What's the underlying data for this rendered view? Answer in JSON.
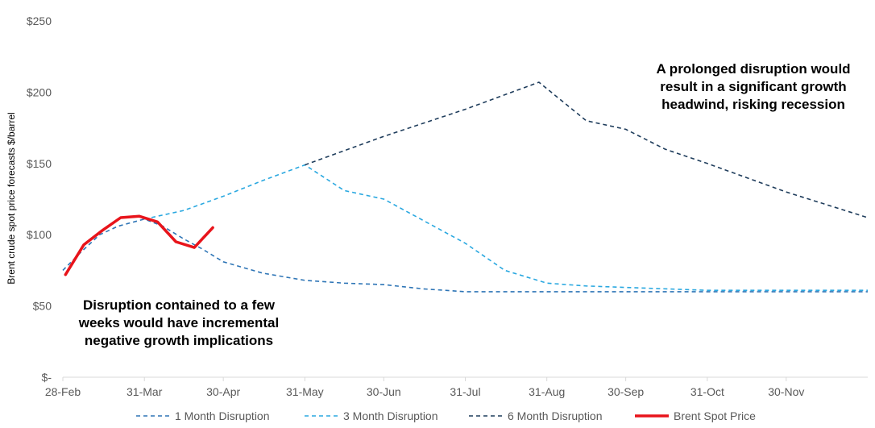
{
  "chart_data": {
    "type": "line",
    "title": "",
    "xlabel": "",
    "ylabel": "Brent crude spot price forecasts $/barrel",
    "ylim": [
      0,
      250
    ],
    "yticks": [
      {
        "value": 0,
        "label": "$-"
      },
      {
        "value": 50,
        "label": "$50"
      },
      {
        "value": 100,
        "label": "$100"
      },
      {
        "value": 150,
        "label": "$150"
      },
      {
        "value": 200,
        "label": "$200"
      },
      {
        "value": 250,
        "label": "$250"
      }
    ],
    "xlim": [
      "2022-02-28",
      "2022-12-31"
    ],
    "xticks": [
      {
        "date": "2022-02-28",
        "label": "28-Feb"
      },
      {
        "date": "2022-03-31",
        "label": "31-Mar"
      },
      {
        "date": "2022-04-30",
        "label": "30-Apr"
      },
      {
        "date": "2022-05-31",
        "label": "31-May"
      },
      {
        "date": "2022-06-30",
        "label": "30-Jun"
      },
      {
        "date": "2022-07-31",
        "label": "31-Jul"
      },
      {
        "date": "2022-08-31",
        "label": "31-Aug"
      },
      {
        "date": "2022-09-30",
        "label": "30-Sep"
      },
      {
        "date": "2022-10-31",
        "label": "31-Oct"
      },
      {
        "date": "2022-11-30",
        "label": "30-Nov"
      }
    ],
    "grid": false,
    "legend": "bottom",
    "series": [
      {
        "name": "1 Month Disruption",
        "color": "#2E75B6",
        "style": "dashed",
        "points": [
          [
            "2022-02-28",
            75
          ],
          [
            "2022-03-07",
            88
          ],
          [
            "2022-03-14",
            100
          ],
          [
            "2022-03-21",
            106
          ],
          [
            "2022-03-31",
            111
          ],
          [
            "2022-04-07",
            106
          ],
          [
            "2022-04-15",
            97
          ],
          [
            "2022-04-22",
            90
          ],
          [
            "2022-04-30",
            81
          ],
          [
            "2022-05-15",
            73
          ],
          [
            "2022-05-31",
            68
          ],
          [
            "2022-06-15",
            66
          ],
          [
            "2022-06-30",
            65
          ],
          [
            "2022-07-15",
            62
          ],
          [
            "2022-07-31",
            60
          ],
          [
            "2022-08-31",
            60
          ],
          [
            "2022-09-30",
            60
          ],
          [
            "2022-10-31",
            60
          ],
          [
            "2022-11-30",
            60
          ],
          [
            "2022-12-31",
            60
          ]
        ]
      },
      {
        "name": "3 Month Disruption",
        "color": "#2AA8E0",
        "style": "dashed",
        "points": [
          [
            "2022-03-31",
            111
          ],
          [
            "2022-04-15",
            117
          ],
          [
            "2022-04-30",
            127
          ],
          [
            "2022-05-15",
            138
          ],
          [
            "2022-05-31",
            149
          ],
          [
            "2022-06-15",
            131
          ],
          [
            "2022-06-30",
            125
          ],
          [
            "2022-07-15",
            110
          ],
          [
            "2022-07-31",
            94
          ],
          [
            "2022-08-15",
            75
          ],
          [
            "2022-08-31",
            66
          ],
          [
            "2022-09-15",
            64
          ],
          [
            "2022-09-30",
            63
          ],
          [
            "2022-10-31",
            61
          ],
          [
            "2022-11-30",
            61
          ],
          [
            "2022-12-31",
            61
          ]
        ]
      },
      {
        "name": "6 Month Disruption",
        "color": "#1F3D5C",
        "style": "dashed",
        "points": [
          [
            "2022-05-31",
            149
          ],
          [
            "2022-06-30",
            169
          ],
          [
            "2022-07-31",
            188
          ],
          [
            "2022-08-28",
            207
          ],
          [
            "2022-09-15",
            180
          ],
          [
            "2022-09-30",
            174
          ],
          [
            "2022-10-15",
            160
          ],
          [
            "2022-10-31",
            150
          ],
          [
            "2022-11-30",
            130
          ],
          [
            "2022-12-31",
            112
          ]
        ]
      },
      {
        "name": "Brent Spot Price",
        "color": "#E8141B",
        "style": "solid",
        "points": [
          [
            "2022-03-01",
            72
          ],
          [
            "2022-03-08",
            93
          ],
          [
            "2022-03-15",
            103
          ],
          [
            "2022-03-22",
            112
          ],
          [
            "2022-03-29",
            113
          ],
          [
            "2022-04-05",
            109
          ],
          [
            "2022-04-12",
            95
          ],
          [
            "2022-04-19",
            91
          ],
          [
            "2022-04-26",
            105
          ]
        ]
      }
    ],
    "annotations": [
      {
        "id": "annotation-contained",
        "lines": [
          "Disruption contained to a few",
          "weeks would have incremental",
          "negative growth implications"
        ]
      },
      {
        "id": "annotation-prolonged",
        "lines": [
          "A prolonged disruption would",
          "result in a significant growth",
          "headwind, risking recession"
        ]
      }
    ]
  }
}
